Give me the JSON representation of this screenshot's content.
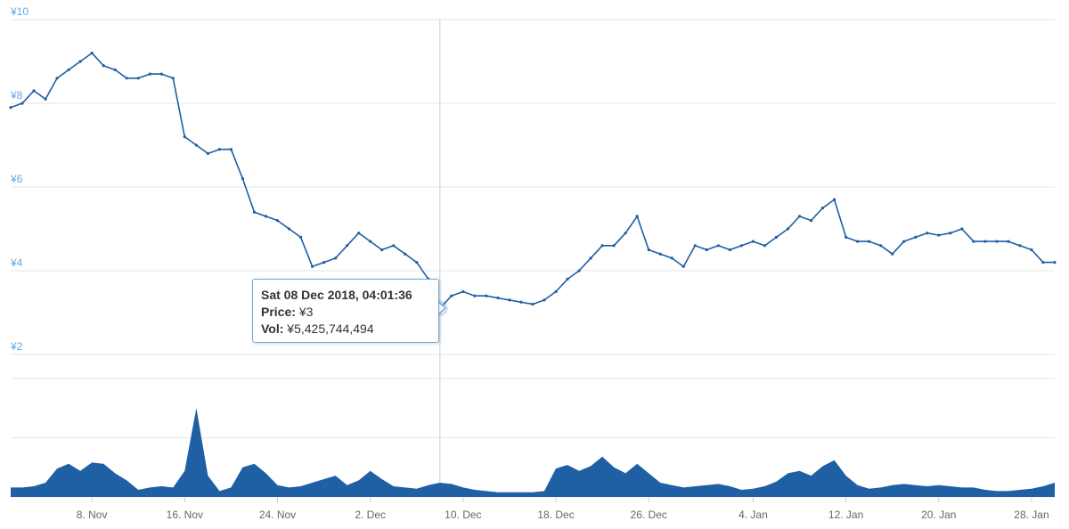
{
  "chart_data": {
    "type": "line",
    "price": {
      "x_range": [
        "2018-11-01",
        "2019-01-30"
      ],
      "ylim": [
        2,
        10
      ],
      "y_ticks": [
        {
          "value": 10,
          "label": "¥10"
        },
        {
          "value": 8,
          "label": "¥8"
        },
        {
          "value": 6,
          "label": "¥6"
        },
        {
          "value": 4,
          "label": "¥4"
        },
        {
          "value": 2,
          "label": "¥2"
        }
      ],
      "series": [
        {
          "points": [
            [
              "2018-11-01",
              7.9
            ],
            [
              "2018-11-02",
              8.0
            ],
            [
              "2018-11-03",
              8.3
            ],
            [
              "2018-11-04",
              8.1
            ],
            [
              "2018-11-05",
              8.6
            ],
            [
              "2018-11-06",
              8.8
            ],
            [
              "2018-11-07",
              9.0
            ],
            [
              "2018-11-08",
              9.2
            ],
            [
              "2018-11-09",
              8.9
            ],
            [
              "2018-11-10",
              8.8
            ],
            [
              "2018-11-11",
              8.6
            ],
            [
              "2018-11-12",
              8.6
            ],
            [
              "2018-11-13",
              8.7
            ],
            [
              "2018-11-14",
              8.7
            ],
            [
              "2018-11-15",
              8.6
            ],
            [
              "2018-11-16",
              7.2
            ],
            [
              "2018-11-17",
              7.0
            ],
            [
              "2018-11-18",
              6.8
            ],
            [
              "2018-11-19",
              6.9
            ],
            [
              "2018-11-20",
              6.9
            ],
            [
              "2018-11-21",
              6.2
            ],
            [
              "2018-11-22",
              5.4
            ],
            [
              "2018-11-23",
              5.3
            ],
            [
              "2018-11-24",
              5.2
            ],
            [
              "2018-11-25",
              5.0
            ],
            [
              "2018-11-26",
              4.8
            ],
            [
              "2018-11-27",
              4.1
            ],
            [
              "2018-11-28",
              4.2
            ],
            [
              "2018-11-29",
              4.3
            ],
            [
              "2018-11-30",
              4.6
            ],
            [
              "2018-12-01",
              4.9
            ],
            [
              "2018-12-02",
              4.7
            ],
            [
              "2018-12-03",
              4.5
            ],
            [
              "2018-12-04",
              4.6
            ],
            [
              "2018-12-05",
              4.4
            ],
            [
              "2018-12-06",
              4.2
            ],
            [
              "2018-12-07",
              3.8
            ],
            [
              "2018-12-08",
              3.1
            ],
            [
              "2018-12-09",
              3.4
            ],
            [
              "2018-12-10",
              3.5
            ],
            [
              "2018-12-11",
              3.4
            ],
            [
              "2018-12-12",
              3.4
            ],
            [
              "2018-12-13",
              3.35
            ],
            [
              "2018-12-14",
              3.3
            ],
            [
              "2018-12-15",
              3.25
            ],
            [
              "2018-12-16",
              3.2
            ],
            [
              "2018-12-17",
              3.3
            ],
            [
              "2018-12-18",
              3.5
            ],
            [
              "2018-12-19",
              3.8
            ],
            [
              "2018-12-20",
              4.0
            ],
            [
              "2018-12-21",
              4.3
            ],
            [
              "2018-12-22",
              4.6
            ],
            [
              "2018-12-23",
              4.6
            ],
            [
              "2018-12-24",
              4.9
            ],
            [
              "2018-12-25",
              5.3
            ],
            [
              "2018-12-26",
              4.5
            ],
            [
              "2018-12-27",
              4.4
            ],
            [
              "2018-12-28",
              4.3
            ],
            [
              "2018-12-29",
              4.1
            ],
            [
              "2018-12-30",
              4.6
            ],
            [
              "2018-12-31",
              4.5
            ],
            [
              "2019-01-01",
              4.6
            ],
            [
              "2019-01-02",
              4.5
            ],
            [
              "2019-01-03",
              4.6
            ],
            [
              "2019-01-04",
              4.7
            ],
            [
              "2019-01-05",
              4.6
            ],
            [
              "2019-01-06",
              4.8
            ],
            [
              "2019-01-07",
              5.0
            ],
            [
              "2019-01-08",
              5.3
            ],
            [
              "2019-01-09",
              5.2
            ],
            [
              "2019-01-10",
              5.5
            ],
            [
              "2019-01-11",
              5.7
            ],
            [
              "2019-01-12",
              4.8
            ],
            [
              "2019-01-13",
              4.7
            ],
            [
              "2019-01-14",
              4.7
            ],
            [
              "2019-01-15",
              4.6
            ],
            [
              "2019-01-16",
              4.4
            ],
            [
              "2019-01-17",
              4.7
            ],
            [
              "2019-01-18",
              4.8
            ],
            [
              "2019-01-19",
              4.9
            ],
            [
              "2019-01-20",
              4.85
            ],
            [
              "2019-01-21",
              4.9
            ],
            [
              "2019-01-22",
              5.0
            ],
            [
              "2019-01-23",
              4.7
            ],
            [
              "2019-01-24",
              4.7
            ],
            [
              "2019-01-25",
              4.7
            ],
            [
              "2019-01-26",
              4.7
            ],
            [
              "2019-01-27",
              4.6
            ],
            [
              "2019-01-28",
              4.5
            ],
            [
              "2019-01-29",
              4.2
            ],
            [
              "2019-01-30",
              4.2
            ]
          ]
        }
      ]
    },
    "volume": {
      "series": [
        {
          "type": "area",
          "points": [
            [
              "2018-11-01",
              0.08
            ],
            [
              "2018-11-02",
              0.08
            ],
            [
              "2018-11-03",
              0.09
            ],
            [
              "2018-11-04",
              0.12
            ],
            [
              "2018-11-05",
              0.24
            ],
            [
              "2018-11-06",
              0.28
            ],
            [
              "2018-11-07",
              0.22
            ],
            [
              "2018-11-08",
              0.29
            ],
            [
              "2018-11-09",
              0.28
            ],
            [
              "2018-11-10",
              0.2
            ],
            [
              "2018-11-11",
              0.14
            ],
            [
              "2018-11-12",
              0.06
            ],
            [
              "2018-11-13",
              0.08
            ],
            [
              "2018-11-14",
              0.09
            ],
            [
              "2018-11-15",
              0.08
            ],
            [
              "2018-11-16",
              0.22
            ],
            [
              "2018-11-17",
              0.75
            ],
            [
              "2018-11-18",
              0.18
            ],
            [
              "2018-11-19",
              0.05
            ],
            [
              "2018-11-20",
              0.08
            ],
            [
              "2018-11-21",
              0.25
            ],
            [
              "2018-11-22",
              0.28
            ],
            [
              "2018-11-23",
              0.2
            ],
            [
              "2018-11-24",
              0.1
            ],
            [
              "2018-11-25",
              0.08
            ],
            [
              "2018-11-26",
              0.09
            ],
            [
              "2018-11-27",
              0.12
            ],
            [
              "2018-11-28",
              0.15
            ],
            [
              "2018-11-29",
              0.18
            ],
            [
              "2018-11-30",
              0.1
            ],
            [
              "2018-12-01",
              0.14
            ],
            [
              "2018-12-02",
              0.22
            ],
            [
              "2018-12-03",
              0.15
            ],
            [
              "2018-12-04",
              0.09
            ],
            [
              "2018-12-05",
              0.08
            ],
            [
              "2018-12-06",
              0.07
            ],
            [
              "2018-12-07",
              0.1
            ],
            [
              "2018-12-08",
              0.12
            ],
            [
              "2018-12-09",
              0.11
            ],
            [
              "2018-12-10",
              0.08
            ],
            [
              "2018-12-11",
              0.06
            ],
            [
              "2018-12-12",
              0.05
            ],
            [
              "2018-12-13",
              0.04
            ],
            [
              "2018-12-14",
              0.04
            ],
            [
              "2018-12-15",
              0.04
            ],
            [
              "2018-12-16",
              0.04
            ],
            [
              "2018-12-17",
              0.05
            ],
            [
              "2018-12-18",
              0.24
            ],
            [
              "2018-12-19",
              0.27
            ],
            [
              "2018-12-20",
              0.22
            ],
            [
              "2018-12-21",
              0.26
            ],
            [
              "2018-12-22",
              0.34
            ],
            [
              "2018-12-23",
              0.25
            ],
            [
              "2018-12-24",
              0.2
            ],
            [
              "2018-12-25",
              0.28
            ],
            [
              "2018-12-26",
              0.2
            ],
            [
              "2018-12-27",
              0.12
            ],
            [
              "2018-12-28",
              0.1
            ],
            [
              "2018-12-29",
              0.08
            ],
            [
              "2018-12-30",
              0.09
            ],
            [
              "2018-12-31",
              0.1
            ],
            [
              "2019-01-01",
              0.11
            ],
            [
              "2019-01-02",
              0.09
            ],
            [
              "2019-01-03",
              0.06
            ],
            [
              "2019-01-04",
              0.07
            ],
            [
              "2019-01-05",
              0.09
            ],
            [
              "2019-01-06",
              0.13
            ],
            [
              "2019-01-07",
              0.2
            ],
            [
              "2019-01-08",
              0.22
            ],
            [
              "2019-01-09",
              0.18
            ],
            [
              "2019-01-10",
              0.26
            ],
            [
              "2019-01-11",
              0.31
            ],
            [
              "2019-01-12",
              0.18
            ],
            [
              "2019-01-13",
              0.1
            ],
            [
              "2019-01-14",
              0.07
            ],
            [
              "2019-01-15",
              0.08
            ],
            [
              "2019-01-16",
              0.1
            ],
            [
              "2019-01-17",
              0.11
            ],
            [
              "2019-01-18",
              0.1
            ],
            [
              "2019-01-19",
              0.09
            ],
            [
              "2019-01-20",
              0.1
            ],
            [
              "2019-01-21",
              0.09
            ],
            [
              "2019-01-22",
              0.08
            ],
            [
              "2019-01-23",
              0.08
            ],
            [
              "2019-01-24",
              0.06
            ],
            [
              "2019-01-25",
              0.05
            ],
            [
              "2019-01-26",
              0.05
            ],
            [
              "2019-01-27",
              0.06
            ],
            [
              "2019-01-28",
              0.07
            ],
            [
              "2019-01-29",
              0.09
            ],
            [
              "2019-01-30",
              0.12
            ]
          ]
        }
      ]
    },
    "x_ticks": [
      {
        "date": "2018-11-08",
        "label": "8. Nov"
      },
      {
        "date": "2018-11-16",
        "label": "16. Nov"
      },
      {
        "date": "2018-11-24",
        "label": "24. Nov"
      },
      {
        "date": "2018-12-02",
        "label": "2. Dec"
      },
      {
        "date": "2018-12-10",
        "label": "10. Dec"
      },
      {
        "date": "2018-12-18",
        "label": "18. Dec"
      },
      {
        "date": "2018-12-26",
        "label": "26. Dec"
      },
      {
        "date": "2019-01-04",
        "label": "4. Jan"
      },
      {
        "date": "2019-01-12",
        "label": "12. Jan"
      },
      {
        "date": "2019-01-20",
        "label": "20. Jan"
      },
      {
        "date": "2019-01-28",
        "label": "28. Jan"
      }
    ],
    "crosshair_date": "2018-12-08",
    "hover_point": {
      "date": "2018-12-08",
      "value": 3.1
    },
    "grid": true,
    "colors": {
      "line": "#1f5fa3",
      "area": "#1f5fa3",
      "grid": "#e6e6e6",
      "crosshair": "#cccccc",
      "y_label": "#5aa9e6"
    }
  },
  "tooltip": {
    "date": "Sat 08 Dec 2018, 04:01:36",
    "price_label": "Price:",
    "price_value": "¥3",
    "vol_label": "Vol:",
    "vol_value": "¥5,425,744,494"
  }
}
